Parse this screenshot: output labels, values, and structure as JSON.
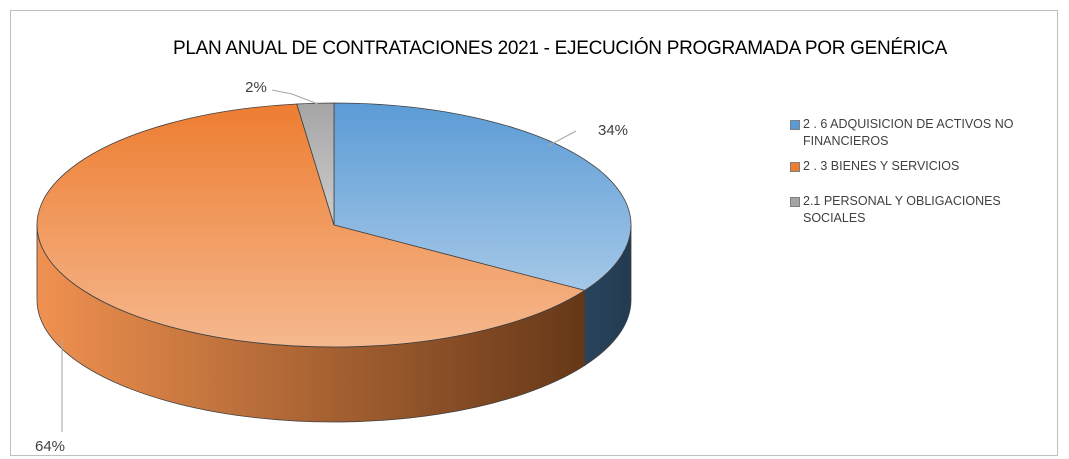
{
  "chart_data": {
    "type": "pie",
    "title": "PLAN ANUAL DE CONTRATACIONES 2021 - EJECUCIÓN PROGRAMADA POR GENÉRICA",
    "categories": [
      "2 . 6 ADQUISICION DE ACTIVOS NO FINANCIEROS",
      "2 . 3 BIENES Y SERVICIOS",
      "2.1 PERSONAL Y OBLIGACIONES SOCIALES"
    ],
    "values": [
      34,
      64,
      2
    ],
    "value_labels": [
      "34%",
      "64%",
      "2%"
    ],
    "colors": [
      "#5b9bd5",
      "#ed7d31",
      "#a5a5a5"
    ],
    "legend": "right"
  }
}
